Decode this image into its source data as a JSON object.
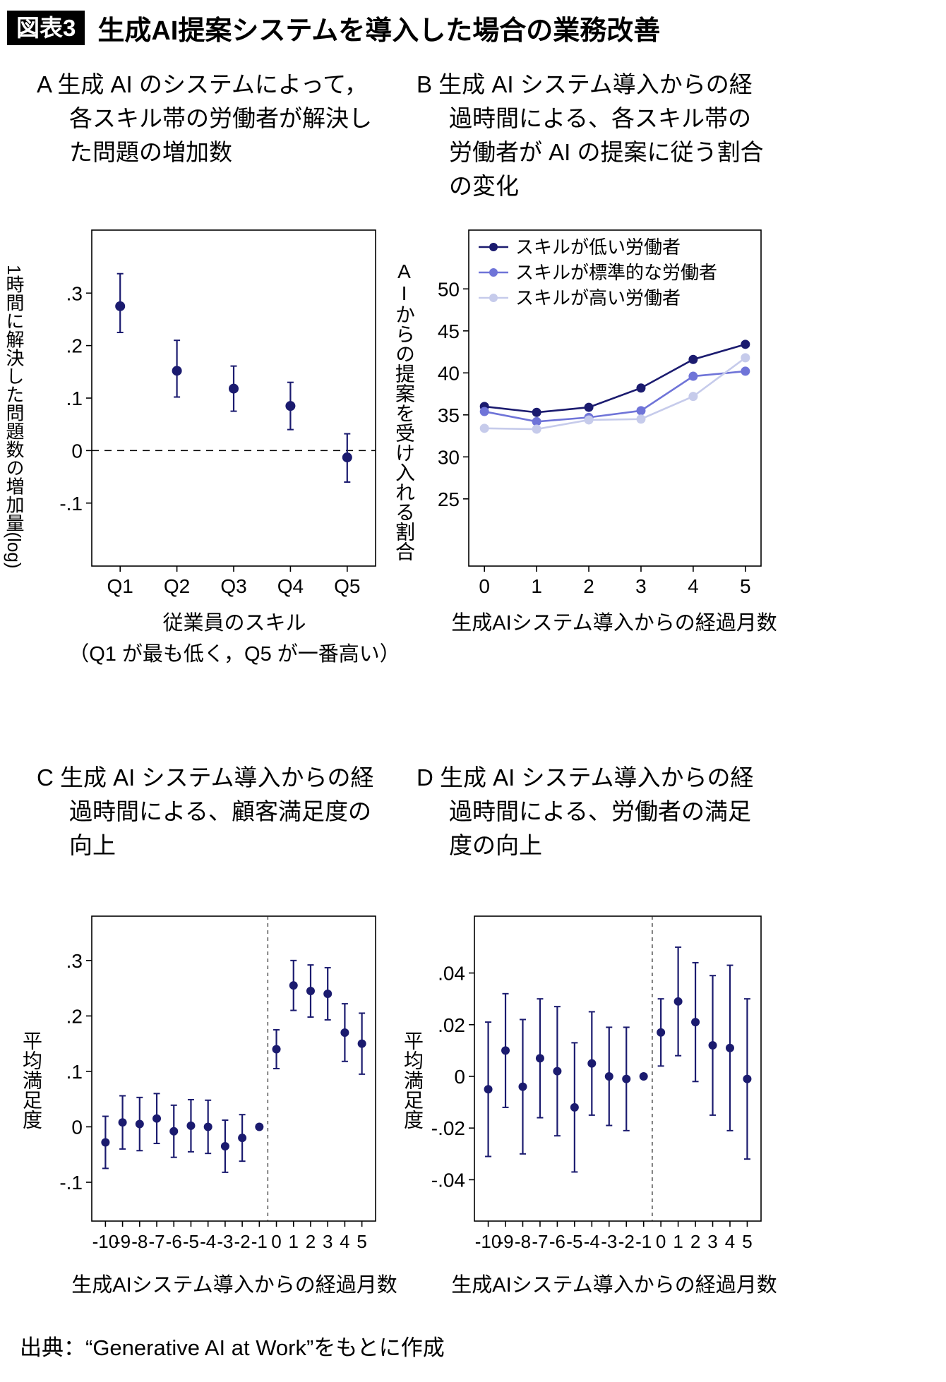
{
  "header": {
    "tag": "図表3",
    "title": "生成AI提案システムを導入した場合の業務改善"
  },
  "footer": {
    "source": "出典：“Generative AI at Work”をもとに作成"
  },
  "colors": {
    "navy": "#1b1b6f",
    "medium_blue": "#6f74d8",
    "light_blue": "#c6cbeb",
    "axis": "#000000"
  },
  "chart_data": [
    {
      "type": "scatter",
      "title": "A 生成 AI のシステムによって，各スキル帯の労働者が解決した問題の増加数",
      "ylabel": "1時間に解決した問題数の増加量(log)",
      "xlabel": "従業員のスキル",
      "xlabel2": "（Q1 が最も低く，Q5 が一番高い）",
      "categories": [
        "Q1",
        "Q2",
        "Q3",
        "Q4",
        "Q5"
      ],
      "values": [
        0.275,
        0.152,
        0.118,
        0.085,
        -0.013
      ],
      "ci_low": [
        0.225,
        0.102,
        0.075,
        0.04,
        -0.06
      ],
      "ci_high": [
        0.337,
        0.21,
        0.161,
        0.13,
        0.032
      ],
      "yticks": [
        {
          "v": 0.3,
          "label": ".3"
        },
        {
          "v": 0.2,
          "label": ".2"
        },
        {
          "v": 0.1,
          "label": ".1"
        },
        {
          "v": 0.0,
          "label": "0"
        },
        {
          "v": -0.1,
          "label": "-.1"
        }
      ],
      "ylim": [
        -0.22,
        0.42
      ],
      "hline": 0,
      "color": "#1b1b6f",
      "grid": false
    },
    {
      "type": "line",
      "title": "B 生成 AI システム導入からの経過時間による、各スキル帯の労働者が AI の提案に従う割合の変化",
      "ylabel": "AIからの提案を受け入れる割合",
      "xlabel": "生成AIシステム導入からの経過月数",
      "x": [
        0,
        1,
        2,
        3,
        4,
        5
      ],
      "series": [
        {
          "name": "スキルが低い労働者",
          "color": "#1b1b6f",
          "values": [
            36.0,
            35.3,
            35.9,
            38.2,
            41.6,
            43.4
          ]
        },
        {
          "name": "スキルが標準的な労働者",
          "color": "#6f74d8",
          "values": [
            35.4,
            34.2,
            34.7,
            35.5,
            39.6,
            40.2
          ]
        },
        {
          "name": "スキルが高い労働者",
          "color": "#c6cbeb",
          "values": [
            33.4,
            33.3,
            34.4,
            34.5,
            37.2,
            41.8
          ]
        }
      ],
      "yticks": [
        {
          "v": 50,
          "label": "50"
        },
        {
          "v": 45,
          "label": "45"
        },
        {
          "v": 40,
          "label": "40"
        },
        {
          "v": 35,
          "label": "35"
        },
        {
          "v": 30,
          "label": "30"
        },
        {
          "v": 25,
          "label": "25"
        }
      ],
      "xticks": [
        {
          "v": 0,
          "label": "0"
        },
        {
          "v": 1,
          "label": "1"
        },
        {
          "v": 2,
          "label": "2"
        },
        {
          "v": 3,
          "label": "3"
        },
        {
          "v": 4,
          "label": "4"
        },
        {
          "v": 5,
          "label": "5"
        }
      ],
      "ylim": [
        17,
        57
      ],
      "xlim": [
        -0.3,
        5.3
      ],
      "legend_position": "top-left-inside",
      "grid": false
    },
    {
      "type": "scatter",
      "title": "C 生成 AI システム導入からの経過時間による、顧客満足度の向上",
      "ylabel": "平均満足度",
      "xlabel": "生成AIシステム導入からの経過月数",
      "x": [
        -10,
        -9,
        -8,
        -7,
        -6,
        -5,
        -4,
        -3,
        -2,
        -1,
        0,
        1,
        2,
        3,
        4,
        5
      ],
      "values": [
        -0.028,
        0.008,
        0.005,
        0.015,
        -0.008,
        0.002,
        0.0,
        -0.035,
        -0.02,
        0.0,
        0.14,
        0.255,
        0.245,
        0.24,
        0.17,
        0.15
      ],
      "ci_low": [
        -0.075,
        -0.04,
        -0.043,
        -0.03,
        -0.055,
        -0.045,
        -0.048,
        -0.082,
        -0.062,
        null,
        0.105,
        0.21,
        0.198,
        0.193,
        0.118,
        0.095
      ],
      "ci_high": [
        0.019,
        0.056,
        0.053,
        0.06,
        0.039,
        0.049,
        0.048,
        0.012,
        0.022,
        null,
        0.175,
        0.3,
        0.292,
        0.287,
        0.222,
        0.205
      ],
      "yticks": [
        {
          "v": 0.3,
          "label": ".3"
        },
        {
          "v": 0.2,
          "label": ".2"
        },
        {
          "v": 0.1,
          "label": ".1"
        },
        {
          "v": 0.0,
          "label": "0"
        },
        {
          "v": -0.1,
          "label": "-.1"
        }
      ],
      "xticks": [
        {
          "v": -10,
          "label": "-10"
        },
        {
          "v": -9,
          "label": "-9"
        },
        {
          "v": -8,
          "label": "-8"
        },
        {
          "v": -7,
          "label": "-7"
        },
        {
          "v": -6,
          "label": "-6"
        },
        {
          "v": -5,
          "label": "-5"
        },
        {
          "v": -4,
          "label": "-4"
        },
        {
          "v": -3,
          "label": "-3"
        },
        {
          "v": -2,
          "label": "-2"
        },
        {
          "v": -1,
          "label": "-1"
        },
        {
          "v": 0,
          "label": "0"
        },
        {
          "v": 1,
          "label": "1"
        },
        {
          "v": 2,
          "label": "2"
        },
        {
          "v": 3,
          "label": "3"
        },
        {
          "v": 4,
          "label": "4"
        },
        {
          "v": 5,
          "label": "5"
        }
      ],
      "ylim": [
        -0.17,
        0.38
      ],
      "xlim": [
        -10.8,
        5.8
      ],
      "vline": -0.5,
      "color": "#1b1b6f",
      "grid": false
    },
    {
      "type": "scatter",
      "title": "D 生成 AI システム導入からの経過時間による、労働者の満足度の向上",
      "ylabel": "平均満足度",
      "xlabel": "生成AIシステム導入からの経過月数",
      "x": [
        -10,
        -9,
        -8,
        -7,
        -6,
        -5,
        -4,
        -3,
        -2,
        -1,
        0,
        1,
        2,
        3,
        4,
        5
      ],
      "values": [
        -0.005,
        0.01,
        -0.004,
        0.007,
        0.002,
        -0.012,
        0.005,
        0.0,
        -0.001,
        0.0,
        0.017,
        0.029,
        0.021,
        0.012,
        0.011,
        -0.001
      ],
      "ci_low": [
        -0.031,
        -0.012,
        -0.03,
        -0.016,
        -0.023,
        -0.037,
        -0.015,
        -0.019,
        -0.021,
        null,
        0.004,
        0.008,
        -0.002,
        -0.015,
        -0.021,
        -0.032
      ],
      "ci_high": [
        0.021,
        0.032,
        0.022,
        0.03,
        0.027,
        0.013,
        0.025,
        0.019,
        0.019,
        null,
        0.03,
        0.05,
        0.044,
        0.039,
        0.043,
        0.03
      ],
      "yticks": [
        {
          "v": 0.04,
          "label": ".04"
        },
        {
          "v": 0.02,
          "label": ".02"
        },
        {
          "v": 0.0,
          "label": "0"
        },
        {
          "v": -0.02,
          "label": "-.02"
        },
        {
          "v": -0.04,
          "label": "-.04"
        }
      ],
      "xticks": [
        {
          "v": -10,
          "label": "-10"
        },
        {
          "v": -9,
          "label": "-9"
        },
        {
          "v": -8,
          "label": "-8"
        },
        {
          "v": -7,
          "label": "-7"
        },
        {
          "v": -6,
          "label": "-6"
        },
        {
          "v": -5,
          "label": "-5"
        },
        {
          "v": -4,
          "label": "-4"
        },
        {
          "v": -3,
          "label": "-3"
        },
        {
          "v": -2,
          "label": "-2"
        },
        {
          "v": -1,
          "label": "-1"
        },
        {
          "v": 0,
          "label": "0"
        },
        {
          "v": 1,
          "label": "1"
        },
        {
          "v": 2,
          "label": "2"
        },
        {
          "v": 3,
          "label": "3"
        },
        {
          "v": 4,
          "label": "4"
        },
        {
          "v": 5,
          "label": "5"
        }
      ],
      "ylim": [
        -0.056,
        0.062
      ],
      "xlim": [
        -10.8,
        5.8
      ],
      "vline": -0.5,
      "color": "#1b1b6f",
      "grid": false
    }
  ]
}
